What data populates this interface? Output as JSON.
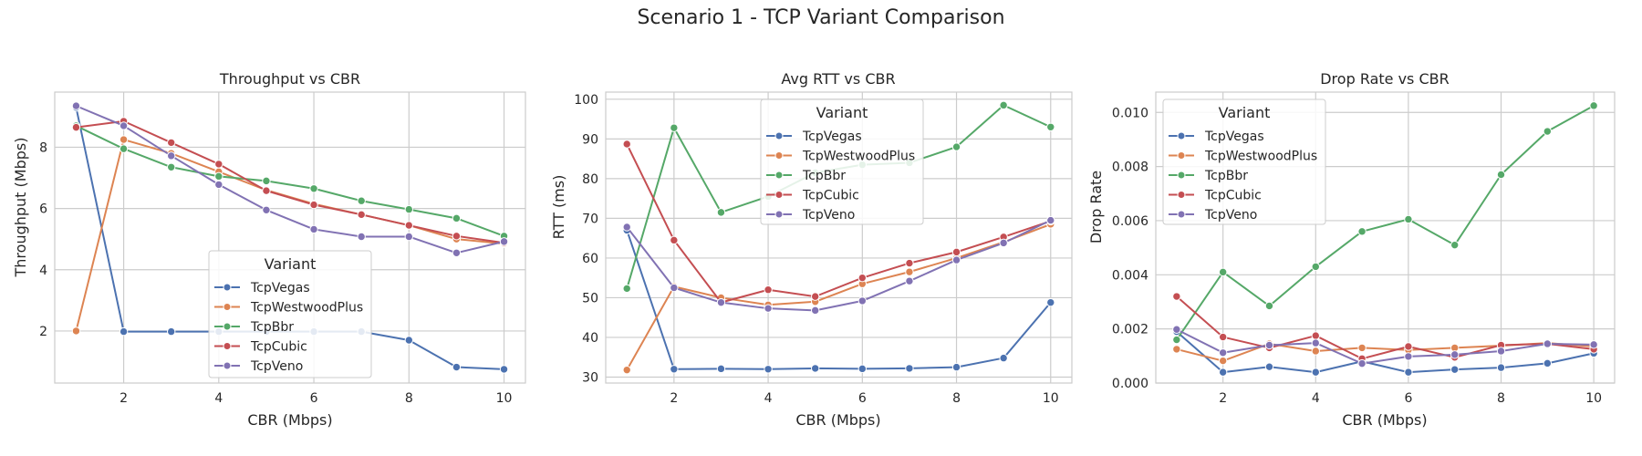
{
  "figure": {
    "suptitle": "Scenario 1 - TCP Variant Comparison"
  },
  "colors": {
    "TcpVegas": "#4c72b0",
    "TcpWestwoodPlus": "#dd8452",
    "TcpBbr": "#55a868",
    "TcpCubic": "#c44e52",
    "TcpVeno": "#8172b3",
    "grid": "#cccccc",
    "plot_bg": "#ffffff"
  },
  "chart_data": [
    {
      "type": "line",
      "title": "Throughput vs CBR",
      "xlabel": "CBR (Mbps)",
      "ylabel": "Throughput (Mbps)",
      "x": [
        1,
        2,
        3,
        4,
        5,
        6,
        7,
        8,
        9,
        10
      ],
      "xlim": [
        0.55,
        10.45
      ],
      "ylim": [
        0.3,
        9.8
      ],
      "xticks": [
        2,
        4,
        6,
        8,
        10
      ],
      "yticks": [
        2,
        4,
        6,
        8
      ],
      "xtick_labels": [
        "2",
        "4",
        "6",
        "8",
        "10"
      ],
      "ytick_labels": [
        "2",
        "4",
        "6",
        "8"
      ],
      "grid": true,
      "legend": {
        "title": "Variant",
        "placement": "lower center"
      },
      "series": [
        {
          "name": "TcpVegas",
          "values": [
            9.3,
            1.98,
            1.98,
            1.98,
            1.98,
            1.98,
            1.98,
            1.7,
            0.82,
            0.75
          ]
        },
        {
          "name": "TcpWestwoodPlus",
          "values": [
            2.0,
            8.25,
            7.8,
            7.2,
            6.6,
            6.15,
            5.8,
            5.45,
            5.0,
            4.85
          ]
        },
        {
          "name": "TcpBbr",
          "values": [
            8.7,
            7.95,
            7.35,
            7.05,
            6.9,
            6.65,
            6.25,
            5.97,
            5.68,
            5.1
          ]
        },
        {
          "name": "TcpCubic",
          "values": [
            8.65,
            8.85,
            8.15,
            7.45,
            6.58,
            6.12,
            5.8,
            5.45,
            5.1,
            4.88
          ]
        },
        {
          "name": "TcpVeno",
          "values": [
            9.35,
            8.7,
            7.72,
            6.78,
            5.95,
            5.32,
            5.08,
            5.08,
            4.55,
            4.92
          ]
        }
      ]
    },
    {
      "type": "line",
      "title": "Avg RTT vs CBR",
      "xlabel": "CBR (Mbps)",
      "ylabel": "RTT (ms)",
      "x": [
        1,
        2,
        3,
        4,
        5,
        6,
        7,
        8,
        9,
        10
      ],
      "xlim": [
        0.55,
        10.45
      ],
      "ylim": [
        28.5,
        101.8
      ],
      "xticks": [
        2,
        4,
        6,
        8,
        10
      ],
      "yticks": [
        30,
        40,
        50,
        60,
        70,
        80,
        90,
        100
      ],
      "xtick_labels": [
        "2",
        "4",
        "6",
        "8",
        "10"
      ],
      "ytick_labels": [
        "30",
        "40",
        "50",
        "60",
        "70",
        "80",
        "90",
        "100"
      ],
      "grid": true,
      "legend": {
        "title": "Variant",
        "placement": "upper center"
      },
      "series": [
        {
          "name": "TcpVegas",
          "values": [
            67.0,
            32.0,
            32.1,
            32.0,
            32.2,
            32.1,
            32.2,
            32.5,
            34.8,
            48.8
          ]
        },
        {
          "name": "TcpWestwoodPlus",
          "values": [
            31.8,
            52.8,
            50.0,
            48.2,
            49.0,
            53.5,
            56.5,
            60.0,
            64.0,
            68.5
          ]
        },
        {
          "name": "TcpBbr",
          "values": [
            52.3,
            92.8,
            71.5,
            75.5,
            81.5,
            83.5,
            84.0,
            88.0,
            98.5,
            93.0
          ]
        },
        {
          "name": "TcpCubic",
          "values": [
            88.7,
            64.5,
            48.8,
            52.0,
            50.3,
            55.0,
            58.7,
            61.5,
            65.3,
            69.3
          ]
        },
        {
          "name": "TcpVeno",
          "values": [
            67.8,
            52.5,
            48.8,
            47.3,
            46.8,
            49.2,
            54.2,
            59.5,
            63.8,
            69.5
          ]
        }
      ]
    },
    {
      "type": "line",
      "title": "Drop Rate vs CBR",
      "xlabel": "CBR (Mbps)",
      "ylabel": "Drop Rate",
      "x": [
        1,
        2,
        3,
        4,
        5,
        6,
        7,
        8,
        9,
        10
      ],
      "xlim": [
        0.55,
        10.45
      ],
      "ylim": [
        0.0,
        0.01075
      ],
      "xticks": [
        2,
        4,
        6,
        8,
        10
      ],
      "yticks": [
        0.0,
        0.002,
        0.004,
        0.006,
        0.008,
        0.01
      ],
      "xtick_labels": [
        "2",
        "4",
        "6",
        "8",
        "10"
      ],
      "ytick_labels": [
        "0.000",
        "0.002",
        "0.004",
        "0.006",
        "0.008",
        "0.010"
      ],
      "grid": true,
      "legend": {
        "title": "Variant",
        "placement": "upper left"
      },
      "series": [
        {
          "name": "TcpVegas",
          "values": [
            0.0019,
            0.0004,
            0.0006,
            0.0004,
            0.0008,
            0.0004,
            0.0005,
            0.00057,
            0.00073,
            0.0011
          ]
        },
        {
          "name": "TcpWestwoodPlus",
          "values": [
            0.00125,
            0.00082,
            0.00145,
            0.00118,
            0.0013,
            0.00122,
            0.0013,
            0.00138,
            0.00148,
            0.00135
          ]
        },
        {
          "name": "TcpBbr",
          "values": [
            0.0016,
            0.0041,
            0.00285,
            0.0043,
            0.0056,
            0.00605,
            0.0051,
            0.0077,
            0.0093,
            0.01025
          ]
        },
        {
          "name": "TcpCubic",
          "values": [
            0.0032,
            0.0017,
            0.0013,
            0.00175,
            0.0009,
            0.00135,
            0.00095,
            0.0014,
            0.00145,
            0.00125
          ]
        },
        {
          "name": "TcpVeno",
          "values": [
            0.00198,
            0.00112,
            0.0014,
            0.00148,
            0.00072,
            0.00098,
            0.00105,
            0.00118,
            0.00145,
            0.00142
          ]
        }
      ]
    }
  ]
}
